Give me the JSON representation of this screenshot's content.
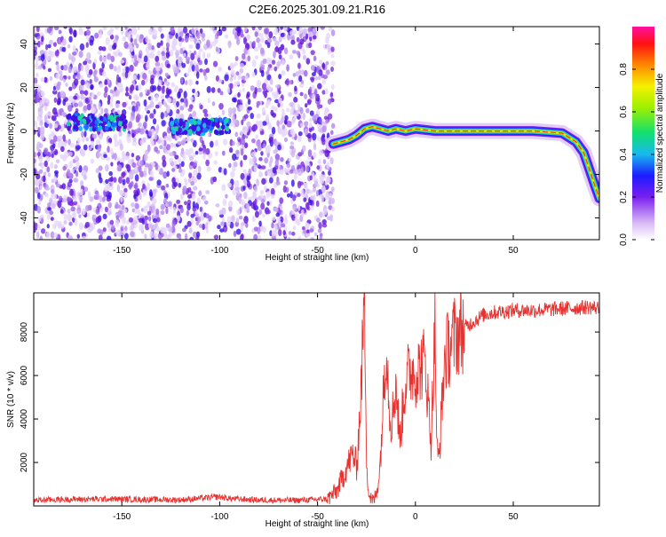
{
  "title": "C2E6.2025.301.09.21.R16",
  "colors": {
    "snr_line": "#e8322f",
    "spec_low": "#c9a8ef",
    "spec_mid": "#7a2be0",
    "frame": "#000000"
  },
  "chart_data": [
    {
      "type": "heatmap",
      "name": "spectrogram",
      "xlabel": "Height of straight line (km)",
      "ylabel": "Frequency (Hz)",
      "xlim": [
        -195,
        94
      ],
      "ylim": [
        -50,
        48
      ],
      "xticks": [
        -150,
        -100,
        -50,
        0,
        50
      ],
      "yticks": [
        -40,
        -20,
        0,
        20,
        40
      ],
      "colorbar": {
        "label": "Normalized spectral amplitude",
        "range": [
          0,
          1
        ],
        "ticks": [
          0.0,
          0.2,
          0.4,
          0.6,
          0.8
        ],
        "tick_labels": [
          "0.0",
          "0.2",
          "0.4",
          "0.6",
          "0.8"
        ]
      },
      "noise_region": [
        -195,
        -42
      ],
      "signal_track": [
        [
          -42,
          -6
        ],
        [
          -38,
          -5
        ],
        [
          -34,
          -4
        ],
        [
          -30,
          -2
        ],
        [
          -26,
          1
        ],
        [
          -22,
          2
        ],
        [
          -18,
          1
        ],
        [
          -14,
          0
        ],
        [
          -10,
          1
        ],
        [
          -5,
          0
        ],
        [
          0,
          1
        ],
        [
          10,
          0
        ],
        [
          20,
          0
        ],
        [
          40,
          0
        ],
        [
          60,
          0
        ],
        [
          75,
          -1
        ],
        [
          82,
          -5
        ],
        [
          86,
          -10
        ],
        [
          89,
          -18
        ],
        [
          92,
          -26
        ],
        [
          94,
          -31
        ]
      ],
      "noise_bands": [
        {
          "x": [
            -178,
            -148
          ],
          "y": 4
        },
        {
          "x": [
            -125,
            -95
          ],
          "y": 2
        }
      ]
    },
    {
      "type": "line",
      "name": "snr",
      "xlabel": "Height of straight line (km)",
      "ylabel": "SNR (10 * v/v)",
      "xlim": [
        -195,
        94
      ],
      "ylim": [
        0,
        9800
      ],
      "xticks": [
        -150,
        -100,
        -50,
        0,
        50
      ],
      "yticks": [
        2000,
        4000,
        6000,
        8000
      ],
      "series": [
        {
          "x": [
            -195,
            -180,
            -160,
            -140,
            -120,
            -100,
            -95,
            -80,
            -60,
            -45,
            -40,
            -35,
            -32,
            -30,
            -28,
            -26,
            -25,
            -24,
            -22,
            -20,
            -18,
            -15,
            -13,
            -12,
            -10,
            -8,
            -5,
            -2,
            0,
            5,
            8,
            10,
            11,
            12,
            15,
            20,
            25,
            30,
            35,
            40,
            50,
            60,
            70,
            80,
            88,
            94
          ],
          "y": [
            260,
            300,
            320,
            300,
            280,
            420,
            340,
            270,
            260,
            320,
            700,
            1800,
            2400,
            1800,
            4800,
            9700,
            2600,
            600,
            200,
            500,
            1900,
            7700,
            4200,
            3900,
            5700,
            3000,
            5800,
            6300,
            6100,
            6700,
            3000,
            8300,
            2500,
            2100,
            6900,
            7800,
            8200,
            8500,
            8800,
            8900,
            9000,
            9000,
            9050,
            9100,
            9150,
            9100
          ]
        }
      ]
    }
  ]
}
